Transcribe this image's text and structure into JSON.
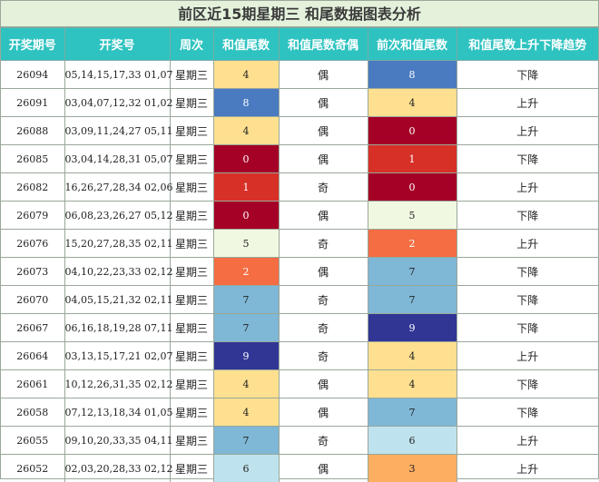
{
  "title": "前区近15期星期三 和尾数据图表分析",
  "headers": [
    "开奖期号",
    "开奖号",
    "周次",
    "和值尾数",
    "和值尾数奇偶",
    "前次和值尾数",
    "和值尾数上升下降趋势"
  ],
  "digit_colors": {
    "0": {
      "bg": "#a50026",
      "fg": "#ffffff"
    },
    "1": {
      "bg": "#d73027",
      "fg": "#ffffff"
    },
    "2": {
      "bg": "#f46d43",
      "fg": "#ffffff"
    },
    "3": {
      "bg": "#fdae61",
      "fg": "#222222"
    },
    "4": {
      "bg": "#fee090",
      "fg": "#222222"
    },
    "5": {
      "bg": "#f1f8e1",
      "fg": "#222222"
    },
    "6": {
      "bg": "#bfe3ee",
      "fg": "#222222"
    },
    "7": {
      "bg": "#7fb7d6",
      "fg": "#222222"
    },
    "8": {
      "bg": "#4a7bc0",
      "fg": "#ffffff"
    },
    "9": {
      "bg": "#313695",
      "fg": "#ffffff"
    }
  },
  "rows": [
    {
      "issue": "26094",
      "numbers": "05,14,15,17,33 01,07",
      "weekday": "星期三",
      "tail": "4",
      "parity": "偶",
      "prev_tail": "8",
      "trend": "下降"
    },
    {
      "issue": "26091",
      "numbers": "03,04,07,12,32 01,02",
      "weekday": "星期三",
      "tail": "8",
      "parity": "偶",
      "prev_tail": "4",
      "trend": "上升"
    },
    {
      "issue": "26088",
      "numbers": "03,09,11,24,27 05,11",
      "weekday": "星期三",
      "tail": "4",
      "parity": "偶",
      "prev_tail": "0",
      "trend": "上升"
    },
    {
      "issue": "26085",
      "numbers": "03,04,14,28,31 05,07",
      "weekday": "星期三",
      "tail": "0",
      "parity": "偶",
      "prev_tail": "1",
      "trend": "下降"
    },
    {
      "issue": "26082",
      "numbers": "16,26,27,28,34 02,06",
      "weekday": "星期三",
      "tail": "1",
      "parity": "奇",
      "prev_tail": "0",
      "trend": "上升"
    },
    {
      "issue": "26079",
      "numbers": "06,08,23,26,27 05,12",
      "weekday": "星期三",
      "tail": "0",
      "parity": "偶",
      "prev_tail": "5",
      "trend": "下降"
    },
    {
      "issue": "26076",
      "numbers": "15,20,27,28,35 02,11",
      "weekday": "星期三",
      "tail": "5",
      "parity": "奇",
      "prev_tail": "2",
      "trend": "上升"
    },
    {
      "issue": "26073",
      "numbers": "04,10,22,23,33 02,12",
      "weekday": "星期三",
      "tail": "2",
      "parity": "偶",
      "prev_tail": "7",
      "trend": "下降"
    },
    {
      "issue": "26070",
      "numbers": "04,05,15,21,32 02,11",
      "weekday": "星期三",
      "tail": "7",
      "parity": "奇",
      "prev_tail": "7",
      "trend": "下降"
    },
    {
      "issue": "26067",
      "numbers": "06,16,18,19,28 07,11",
      "weekday": "星期三",
      "tail": "7",
      "parity": "奇",
      "prev_tail": "9",
      "trend": "下降"
    },
    {
      "issue": "26064",
      "numbers": "03,13,15,17,21 02,07",
      "weekday": "星期三",
      "tail": "9",
      "parity": "奇",
      "prev_tail": "4",
      "trend": "上升"
    },
    {
      "issue": "26061",
      "numbers": "10,12,26,31,35 02,12",
      "weekday": "星期三",
      "tail": "4",
      "parity": "偶",
      "prev_tail": "4",
      "trend": "下降"
    },
    {
      "issue": "26058",
      "numbers": "07,12,13,18,34 01,05",
      "weekday": "星期三",
      "tail": "4",
      "parity": "偶",
      "prev_tail": "7",
      "trend": "下降"
    },
    {
      "issue": "26055",
      "numbers": "09,10,20,33,35 04,11",
      "weekday": "星期三",
      "tail": "7",
      "parity": "奇",
      "prev_tail": "6",
      "trend": "上升"
    },
    {
      "issue": "26052",
      "numbers": "02,03,20,28,33 02,12",
      "weekday": "星期三",
      "tail": "6",
      "parity": "偶",
      "prev_tail": "3",
      "trend": "上升"
    }
  ]
}
